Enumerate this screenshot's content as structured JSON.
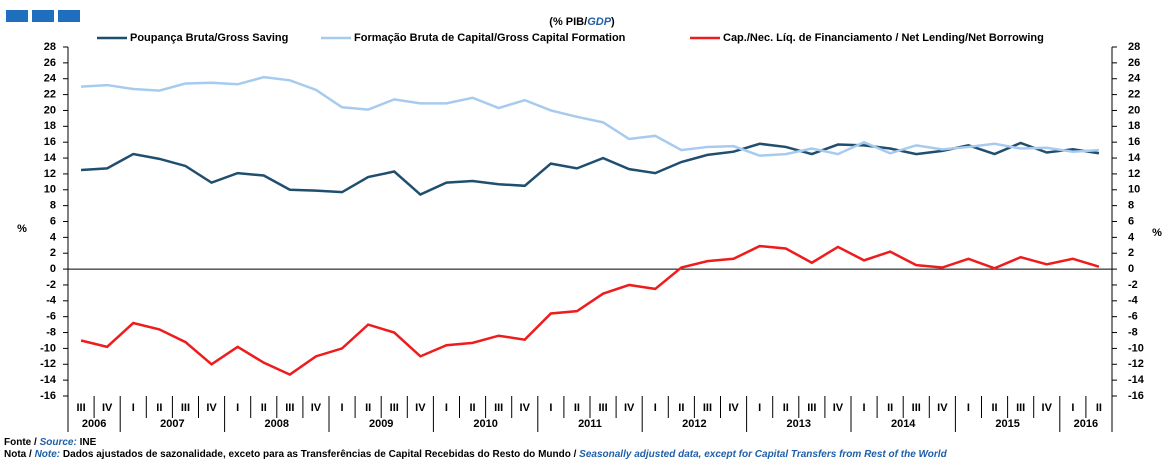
{
  "chart_data": {
    "type": "line",
    "title_parts": [
      "(% PIB/",
      "GDP",
      ")"
    ],
    "ylabel": "%",
    "y2label": "%",
    "categories": [
      "III",
      "IV",
      "I",
      "II",
      "III",
      "IV",
      "I",
      "II",
      "III",
      "IV",
      "I",
      "II",
      "III",
      "IV",
      "I",
      "II",
      "III",
      "IV",
      "I",
      "II",
      "III",
      "IV",
      "I",
      "II",
      "III",
      "IV",
      "I",
      "II",
      "III",
      "IV",
      "I",
      "II",
      "III",
      "IV",
      "I",
      "II",
      "III",
      "IV",
      "I",
      "II"
    ],
    "years": [
      "2006",
      "2007",
      "2008",
      "2009",
      "2010",
      "2011",
      "2012",
      "2013",
      "2014",
      "2015",
      "2016"
    ],
    "series": [
      {
        "name": "Poupança Bruta/Gross Saving",
        "color": "#1f4e6e",
        "values": [
          12.5,
          12.7,
          14.5,
          13.9,
          13.0,
          10.9,
          12.1,
          11.8,
          10.0,
          9.9,
          9.7,
          11.6,
          12.3,
          9.4,
          10.9,
          11.1,
          10.7,
          10.5,
          13.3,
          12.7,
          14.0,
          12.6,
          12.1,
          13.5,
          14.4,
          14.8,
          15.8,
          15.4,
          14.5,
          15.7,
          15.6,
          15.2,
          14.5,
          14.9,
          15.6,
          14.5,
          15.9,
          14.7,
          15.1,
          14.6
        ]
      },
      {
        "name": "Formação Bruta de Capital/Gross Capital Formation",
        "color": "#a6cbef",
        "values": [
          23.0,
          23.2,
          22.7,
          22.5,
          23.4,
          23.5,
          23.3,
          24.2,
          23.8,
          22.6,
          20.4,
          20.1,
          21.4,
          20.9,
          20.9,
          21.6,
          20.3,
          21.3,
          20.0,
          19.2,
          18.5,
          16.4,
          16.8,
          15.0,
          15.4,
          15.5,
          14.3,
          14.5,
          15.2,
          14.5,
          16.0,
          14.6,
          15.6,
          15.1,
          15.4,
          15.8,
          15.2,
          15.3,
          14.8,
          15.0
        ]
      },
      {
        "name": "Cap./Nec. Líq. de Financiamento / Net Lending/Net Borrowing",
        "color": "#ee1c1c",
        "values": [
          -9.0,
          -9.8,
          -6.8,
          -7.6,
          -9.2,
          -12.0,
          -9.8,
          -11.8,
          -13.3,
          -11.0,
          -10.0,
          -7.0,
          -8.0,
          -11.0,
          -9.6,
          -9.3,
          -8.4,
          -8.9,
          -5.6,
          -5.3,
          -3.1,
          -2.0,
          -2.5,
          0.2,
          1.0,
          1.3,
          2.9,
          2.6,
          0.8,
          2.8,
          1.1,
          2.2,
          0.5,
          0.2,
          1.3,
          0.1,
          1.5,
          0.6,
          1.3,
          0.3
        ]
      }
    ],
    "ylim": [
      -16,
      28
    ],
    "yticks": [
      -16,
      -14,
      -12,
      -10,
      -8,
      -6,
      -4,
      -2,
      0,
      2,
      4,
      6,
      8,
      10,
      12,
      14,
      16,
      18,
      20,
      22,
      24,
      26,
      28
    ],
    "y2lim": [
      -16,
      28
    ],
    "y2ticks": [
      -16,
      -14,
      -12,
      -10,
      -8,
      -6,
      -4,
      -2,
      0,
      2,
      4,
      6,
      8,
      10,
      12,
      14,
      16,
      18,
      20,
      22,
      24,
      26,
      28
    ],
    "source_prefix": "Fonte / ",
    "source_label": "Source:",
    "source": "INE",
    "note_prefix": "Nota / ",
    "note_label": "Note:",
    "note_pt": "Dados ajustados de sazonalidade, exceto para as Transferências de Capital Recebidas do Resto do Mundo / ",
    "note_en": "Seasonally adjusted data, except for Capital Transfers from Rest of the World"
  }
}
